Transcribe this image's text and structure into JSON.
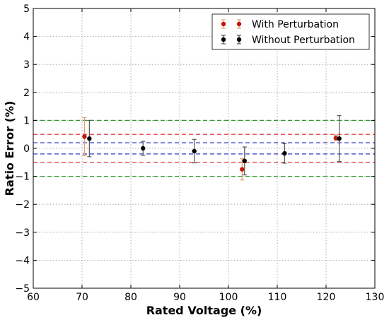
{
  "chart_data": {
    "type": "scatter",
    "xlabel": "Rated Voltage (%)",
    "ylabel": "Ratio Error (%)",
    "xlim": [
      60,
      130
    ],
    "ylim": [
      -5,
      5
    ],
    "xticks": [
      60,
      70,
      80,
      90,
      100,
      110,
      120,
      130
    ],
    "yticks": [
      -5,
      -4,
      -3,
      -2,
      -1,
      0,
      1,
      2,
      3,
      4,
      5
    ],
    "xtick_labels": [
      "60",
      "70",
      "80",
      "90",
      "100",
      "110",
      "120",
      "130"
    ],
    "ytick_labels": [
      "−5",
      "−4",
      "−3",
      "−2",
      "−1",
      "0",
      "1",
      "2",
      "3",
      "4",
      "5"
    ],
    "grid": true,
    "legend_position": "top-right",
    "series": [
      {
        "name": "With Perturbation",
        "color": "#c0160c",
        "error_color": "#e0a070",
        "points": [
          {
            "x": 70.5,
            "y": 0.42,
            "err": 0.68
          },
          {
            "x": 102.8,
            "y": -0.75,
            "err": 0.38
          },
          {
            "x": 122.0,
            "y": 0.37,
            "err": 0.1
          }
        ]
      },
      {
        "name": "Without Perturbation",
        "color": "#000000",
        "error_color": "#555555",
        "points": [
          {
            "x": 71.5,
            "y": 0.35,
            "err": 0.65
          },
          {
            "x": 82.5,
            "y": 0.0,
            "err": 0.25
          },
          {
            "x": 93.0,
            "y": -0.1,
            "err": 0.42
          },
          {
            "x": 103.3,
            "y": -0.45,
            "err": 0.5
          },
          {
            "x": 111.5,
            "y": -0.18,
            "err": 0.35
          },
          {
            "x": 122.7,
            "y": 0.35,
            "err": 0.82
          }
        ]
      }
    ],
    "reference_lines": [
      {
        "y": 1.0,
        "color": "#2a9a2a"
      },
      {
        "y": -1.0,
        "color": "#2a9a2a"
      },
      {
        "y": 0.5,
        "color": "#e02020"
      },
      {
        "y": -0.5,
        "color": "#e02020"
      },
      {
        "y": 0.2,
        "color": "#2020c0"
      },
      {
        "y": -0.2,
        "color": "#2020c0"
      }
    ]
  }
}
